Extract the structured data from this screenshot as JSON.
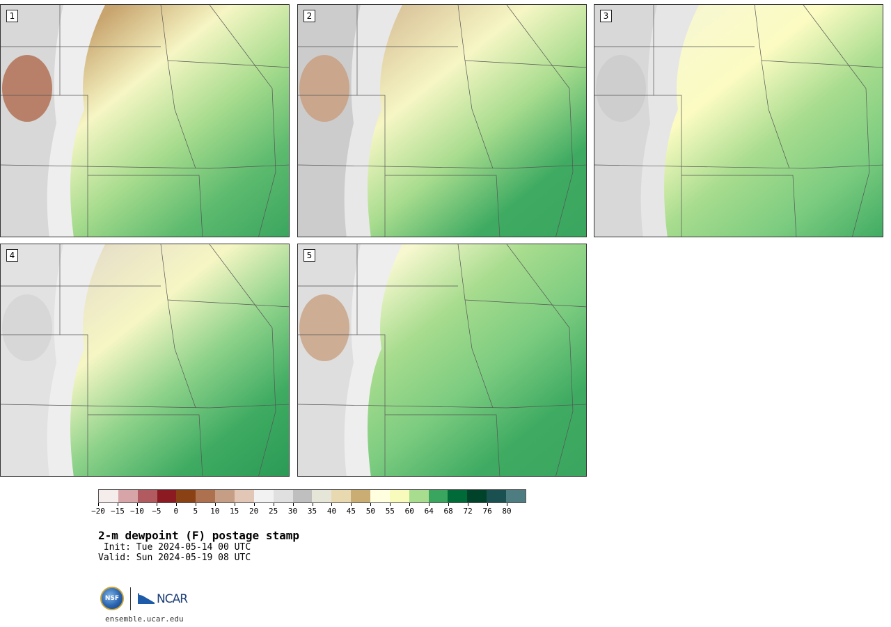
{
  "panels": [
    {
      "label": "1",
      "stops": [
        "#c8a46e",
        "#c8a46e",
        "#f6f6c4",
        "#a8dc8e",
        "#5cba6e",
        "#3aa55e"
      ],
      "west": [
        "#b06a4c",
        "#d8d8d8",
        "#eeeeee"
      ]
    },
    {
      "label": "2",
      "stops": [
        "#c9ad79",
        "#ddc99f",
        "#f6f6c4",
        "#a8dc8e",
        "#3fab62",
        "#3aa55e"
      ],
      "west": [
        "#c89c7c",
        "#cccccc",
        "#e8e8e8"
      ]
    },
    {
      "label": "3",
      "stops": [
        "#d8c690",
        "#f8f8d0",
        "#fbfbc2",
        "#a8dc8e",
        "#7ccc80",
        "#3fab62"
      ],
      "west": [
        "#cccccc",
        "#d8d8d8",
        "#e6e6e6"
      ]
    },
    {
      "label": "4",
      "stops": [
        "#cdb07a",
        "#e8e2c8",
        "#f6f6c4",
        "#8ed28a",
        "#3fab62",
        "#2a9a55"
      ],
      "west": [
        "#d4d4d4",
        "#e2e2e2",
        "#eeeeee"
      ]
    },
    {
      "label": "5",
      "stops": [
        "#e3dcc8",
        "#f8f8d0",
        "#a8dc8e",
        "#7ccc80",
        "#3fab62",
        "#3aa55e"
      ],
      "west": [
        "#c8a080",
        "#dedede",
        "#eeeeee"
      ]
    }
  ],
  "colorbar": {
    "colors": [
      "#f5ecec",
      "#d7a4a8",
      "#b15a60",
      "#8b1a22",
      "#8a4214",
      "#ad7150",
      "#c69e86",
      "#e2c7b6",
      "#f2f2f2",
      "#e0e0e0",
      "#bfbfbf",
      "#e5e5d8",
      "#e9d9b0",
      "#c9ad72",
      "#ffffe0",
      "#f8fbbb",
      "#a8dc8e",
      "#3aa55e",
      "#006b38",
      "#00422a",
      "#1a5050",
      "#4d7d80"
    ],
    "tick_labels": [
      "−20",
      "−15",
      "−10",
      "−5",
      "0",
      "5",
      "10",
      "15",
      "20",
      "25",
      "30",
      "35",
      "40",
      "45",
      "50",
      "55",
      "60",
      "64",
      "68",
      "72",
      "76",
      "80"
    ]
  },
  "title": "2-m dewpoint (F) postage stamp",
  "init": " Init: Tue 2024-05-14 00 UTC",
  "valid": "Valid: Sun 2024-05-19 08 UTC",
  "logos": {
    "nsf": "NSF",
    "ncar": "NCAR"
  },
  "site": "ensemble.ucar.edu"
}
